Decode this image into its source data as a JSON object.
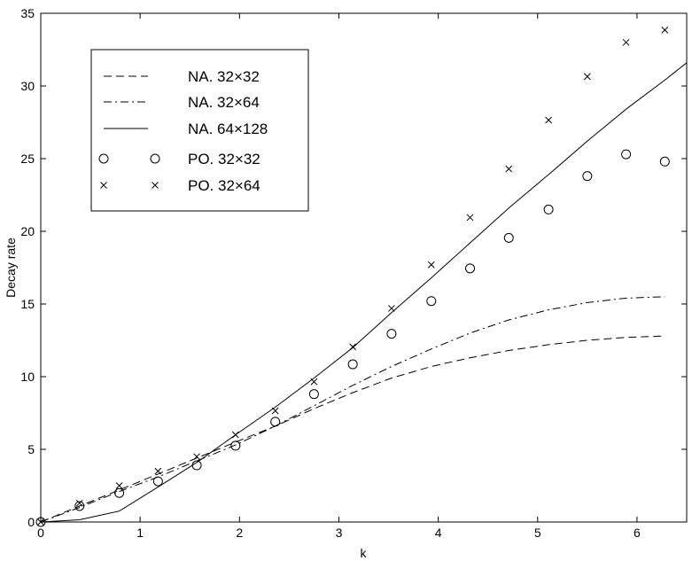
{
  "chart_data": {
    "type": "line",
    "title": "",
    "xlabel": "k",
    "ylabel": "Decay rate",
    "xlim": [
      0,
      6.5
    ],
    "ylim": [
      0,
      35
    ],
    "xticks": [
      "0",
      "1",
      "2",
      "3",
      "4",
      "5",
      "6"
    ],
    "yticks": [
      "0",
      "5",
      "10",
      "15",
      "20",
      "25",
      "30",
      "35"
    ],
    "grid": false,
    "legend_position": "top-left",
    "series": [
      {
        "name": "NA. 32×32",
        "style": "dashed",
        "x": [
          0,
          0.39,
          0.79,
          1.18,
          1.57,
          1.96,
          2.36,
          2.75,
          3.14,
          3.53,
          3.93,
          4.32,
          4.71,
          5.11,
          5.5,
          5.89,
          6.28
        ],
        "y": [
          0,
          1.1,
          2.2,
          3.3,
          4.4,
          5.5,
          6.6,
          7.8,
          8.9,
          9.9,
          10.7,
          11.3,
          11.8,
          12.2,
          12.5,
          12.7,
          12.8
        ]
      },
      {
        "name": "NA. 32×64",
        "style": "dashdot",
        "x": [
          0,
          0.39,
          0.79,
          1.18,
          1.57,
          1.96,
          2.36,
          2.75,
          3.14,
          3.53,
          3.93,
          4.32,
          4.71,
          5.11,
          5.5,
          5.89,
          6.28
        ],
        "y": [
          0,
          1.0,
          2.1,
          3.1,
          4.2,
          5.3,
          6.6,
          8.0,
          9.4,
          10.7,
          11.9,
          13.0,
          13.9,
          14.6,
          15.1,
          15.4,
          15.5
        ]
      },
      {
        "name": "NA. 64×128",
        "style": "solid",
        "x": [
          0,
          0.39,
          0.79,
          1.18,
          1.57,
          1.96,
          2.36,
          2.75,
          3.14,
          3.53,
          3.93,
          4.32,
          4.71,
          5.11,
          5.5,
          5.89,
          6.28,
          6.5
        ],
        "y": [
          0,
          0.15,
          0.75,
          2.4,
          4.1,
          6.0,
          7.9,
          9.9,
          12.0,
          14.4,
          16.8,
          19.2,
          21.6,
          23.9,
          26.2,
          28.4,
          30.4,
          31.6
        ]
      },
      {
        "name": "PO. 32×32",
        "style": "circle",
        "x": [
          0,
          0.39,
          0.79,
          1.18,
          1.57,
          1.96,
          2.36,
          2.75,
          3.14,
          3.53,
          3.93,
          4.32,
          4.71,
          5.11,
          5.5,
          5.89,
          6.28
        ],
        "y": [
          0,
          1.1,
          2.0,
          2.8,
          3.9,
          5.25,
          6.9,
          8.8,
          10.85,
          12.95,
          15.2,
          17.45,
          19.55,
          21.5,
          23.8,
          25.3,
          24.8
        ]
      },
      {
        "name": "PO. 32×64",
        "style": "cross",
        "x": [
          0,
          0.39,
          0.79,
          1.18,
          1.57,
          1.96,
          2.36,
          2.75,
          3.14,
          3.53,
          3.93,
          4.32,
          4.71,
          5.11,
          5.5,
          5.89,
          6.28
        ],
        "y": [
          0,
          1.3,
          2.5,
          3.5,
          4.5,
          6.0,
          7.65,
          9.65,
          12.05,
          14.7,
          17.7,
          20.95,
          24.3,
          27.65,
          30.65,
          33.0,
          33.85
        ]
      }
    ]
  },
  "colors": {
    "ink": "#000000",
    "background": "#ffffff"
  }
}
